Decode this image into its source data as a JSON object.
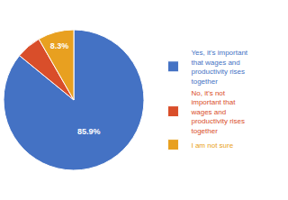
{
  "chart_data": {
    "type": "pie",
    "categories": [
      "Yes, it's important\nthat wages and\nproductivity rises\ntogether",
      "No, it's not\nimportant that\nwages and\nproductivity rises\ntogether",
      "I am not sure"
    ],
    "values": [
      85.9,
      5.8,
      8.3
    ],
    "value_labels": [
      "85.9%",
      null,
      "8.3%"
    ],
    "data_labels": true,
    "colors": [
      "#4472C4",
      "#D94E2A",
      "#E8A020"
    ],
    "legend": "right"
  }
}
